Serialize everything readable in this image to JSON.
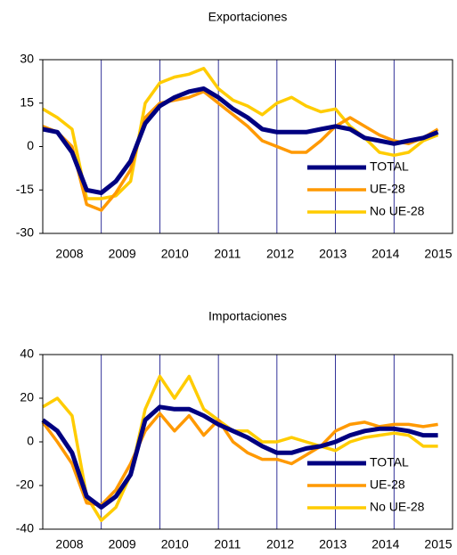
{
  "chart_data": [
    {
      "type": "line",
      "title": "Exportaciones",
      "x": [
        2008.0,
        2008.25,
        2008.5,
        2008.75,
        2009.0,
        2009.25,
        2009.5,
        2009.75,
        2010.0,
        2010.25,
        2010.5,
        2010.75,
        2011.0,
        2011.25,
        2011.5,
        2011.75,
        2012.0,
        2012.25,
        2012.5,
        2012.75,
        2013.0,
        2013.25,
        2013.5,
        2013.75,
        2014.0,
        2014.25,
        2014.5,
        2014.75
      ],
      "xlim": [
        2008,
        2015
      ],
      "xtick_labels": [
        "2008",
        "2009",
        "2010",
        "2011",
        "2012",
        "2013",
        "2014",
        "2015"
      ],
      "ylim": [
        -30,
        30
      ],
      "yticks": [
        30,
        15,
        0,
        -15,
        -30
      ],
      "legend": "lower right",
      "series": [
        {
          "name": "TOTAL",
          "color": "#000080",
          "values": [
            6,
            5,
            -2,
            -15,
            -16,
            -12,
            -5,
            8,
            14,
            17,
            19,
            20,
            17,
            13,
            10,
            6,
            5,
            5,
            5,
            6,
            7,
            6,
            3,
            2,
            1,
            2,
            3,
            5
          ]
        },
        {
          "name": "UE-28",
          "color": "#ff9900",
          "values": [
            7,
            5,
            0,
            -20,
            -22,
            -16,
            -8,
            10,
            15,
            16,
            17,
            19,
            15,
            11,
            7,
            2,
            0,
            -2,
            -2,
            2,
            7,
            10,
            7,
            4,
            2,
            1,
            3,
            6
          ]
        },
        {
          "name": "No UE-28",
          "color": "#ffcc00",
          "values": [
            13,
            10,
            6,
            -18,
            -18,
            -17,
            -12,
            15,
            22,
            24,
            25,
            27,
            20,
            16,
            14,
            11,
            15,
            17,
            14,
            12,
            13,
            7,
            3,
            -2,
            -3,
            -2,
            2,
            4
          ]
        }
      ]
    },
    {
      "type": "line",
      "title": "Importaciones",
      "x": [
        2008.0,
        2008.25,
        2008.5,
        2008.75,
        2009.0,
        2009.25,
        2009.5,
        2009.75,
        2010.0,
        2010.25,
        2010.5,
        2010.75,
        2011.0,
        2011.25,
        2011.5,
        2011.75,
        2012.0,
        2012.25,
        2012.5,
        2012.75,
        2013.0,
        2013.25,
        2013.5,
        2013.75,
        2014.0,
        2014.25,
        2014.5,
        2014.75
      ],
      "xlim": [
        2008,
        2015
      ],
      "xtick_labels": [
        "2008",
        "2009",
        "2010",
        "2011",
        "2012",
        "2013",
        "2014",
        "2015"
      ],
      "ylim": [
        -40,
        40
      ],
      "yticks": [
        40,
        20,
        0,
        -20,
        -40
      ],
      "legend": "lower right",
      "series": [
        {
          "name": "TOTAL",
          "color": "#000080",
          "values": [
            10,
            5,
            -5,
            -25,
            -30,
            -25,
            -15,
            10,
            16,
            15,
            15,
            12,
            8,
            5,
            2,
            -2,
            -5,
            -5,
            -3,
            -2,
            0,
            3,
            5,
            6,
            6,
            5,
            3,
            3
          ]
        },
        {
          "name": "UE-28",
          "color": "#ff9900",
          "values": [
            9,
            0,
            -10,
            -28,
            -29,
            -22,
            -10,
            5,
            13,
            5,
            12,
            3,
            10,
            0,
            -5,
            -8,
            -8,
            -10,
            -6,
            -2,
            5,
            8,
            9,
            7,
            8,
            8,
            7,
            8
          ]
        },
        {
          "name": "No UE-28",
          "color": "#ffcc00",
          "values": [
            16,
            20,
            12,
            -25,
            -36,
            -30,
            -15,
            15,
            30,
            20,
            30,
            15,
            10,
            5,
            5,
            0,
            0,
            2,
            0,
            -2,
            -4,
            0,
            2,
            3,
            4,
            3,
            -2,
            -2
          ]
        }
      ]
    }
  ]
}
